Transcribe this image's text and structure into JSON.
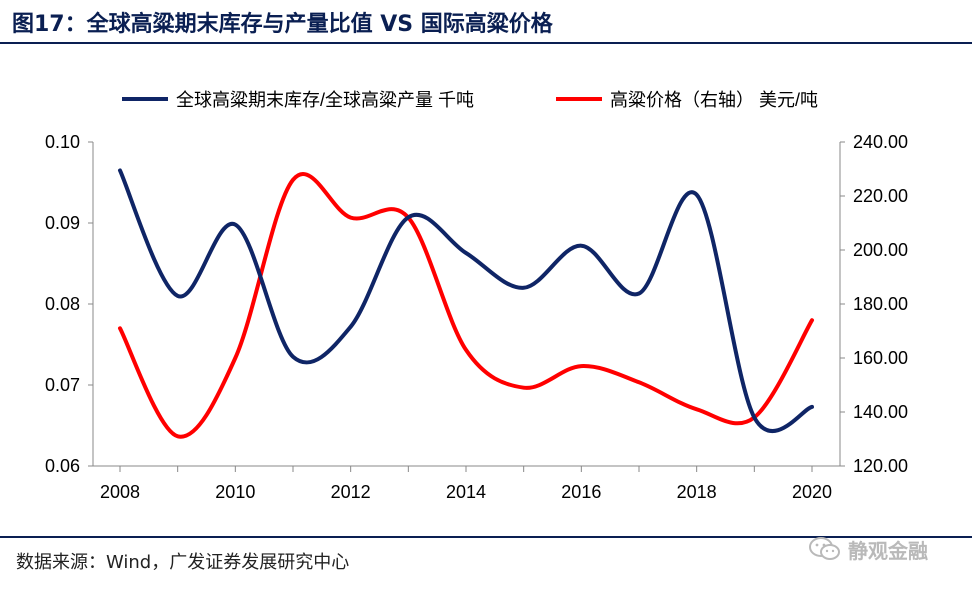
{
  "figure": {
    "title": "图17：全球高粱期末库存与产量比值 VS 国际高粱价格",
    "source": "数据来源：Wind，广发证券发展研究中心",
    "watermark": "静观金融"
  },
  "chart_data": {
    "type": "line",
    "title": "",
    "xlabel": "",
    "ylabel": "",
    "xlim": [
      2008,
      2020
    ],
    "x_ticks": [
      "2008",
      "2010",
      "2012",
      "2014",
      "2016",
      "2018",
      "2020"
    ],
    "y_left": {
      "ylim": [
        0.06,
        0.1
      ],
      "ticks": [
        "0.06",
        "0.07",
        "0.08",
        "0.09",
        "0.10"
      ]
    },
    "y_right": {
      "ylim": [
        120,
        240
      ],
      "ticks": [
        "120.00",
        "140.00",
        "160.00",
        "180.00",
        "200.00",
        "220.00",
        "240.00"
      ]
    },
    "legend_position": "top",
    "grid": false,
    "series": [
      {
        "name": "全球高粱期末库存/全球高粱产量 千吨",
        "axis": "left",
        "color": "#0f2566",
        "x": [
          2008,
          2009,
          2010,
          2011,
          2012,
          2013,
          2014,
          2015,
          2016,
          2017,
          2018,
          2019,
          2020
        ],
        "values": [
          0.0965,
          0.081,
          0.0898,
          0.0735,
          0.0772,
          0.0907,
          0.0863,
          0.082,
          0.0872,
          0.0813,
          0.0935,
          0.066,
          0.0673
        ]
      },
      {
        "name": "高粱价格（右轴） 美元/吨",
        "axis": "right",
        "color": "#ff0000",
        "x": [
          2008,
          2009,
          2010,
          2011,
          2012,
          2013,
          2014,
          2015,
          2016,
          2017,
          2018,
          2019,
          2020
        ],
        "values": [
          171,
          131,
          160,
          226,
          212,
          212,
          163,
          149,
          157,
          151,
          141,
          138,
          174
        ]
      }
    ]
  }
}
